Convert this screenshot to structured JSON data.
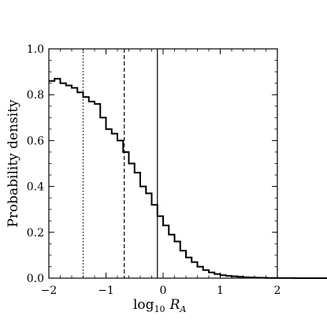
{
  "chart_data": {
    "type": "step",
    "xlabel": {
      "prefix": "log",
      "sub": "10",
      "var": "R",
      "var_sub": "A"
    },
    "ylabel": "Probability density",
    "xlim": [
      -2,
      2
    ],
    "ylim": [
      0,
      1.0
    ],
    "xticks": [
      -2,
      -1,
      0,
      1,
      2
    ],
    "xtick_labels": [
      "−2",
      "−1",
      "0",
      "1",
      "2"
    ],
    "yticks": [
      0.0,
      0.2,
      0.4,
      0.6,
      0.8,
      1.0
    ],
    "ytick_labels": [
      "0.0",
      "0.2",
      "0.4",
      "0.6",
      "0.8",
      "1.0"
    ],
    "bin_width": 0.1,
    "bin_start": -2.0,
    "values": [
      0.86,
      0.87,
      0.85,
      0.84,
      0.83,
      0.81,
      0.79,
      0.77,
      0.76,
      0.7,
      0.65,
      0.63,
      0.6,
      0.55,
      0.5,
      0.46,
      0.4,
      0.37,
      0.32,
      0.27,
      0.23,
      0.19,
      0.16,
      0.12,
      0.09,
      0.07,
      0.05,
      0.035,
      0.025,
      0.018,
      0.013,
      0.01,
      0.008,
      0.006,
      0.004,
      0.003,
      0.002,
      0.0015,
      0.001,
      0.0007,
      0.0005,
      0.0004,
      0.0003,
      0.0002,
      0.0001,
      0.0001,
      0.0,
      0.0,
      0.0,
      0.0
    ],
    "reference_lines": [
      {
        "x": -1.4,
        "style": "dotted"
      },
      {
        "x": -0.68,
        "style": "dashed"
      },
      {
        "x": -0.1,
        "style": "solid"
      }
    ],
    "line_color": "#000000"
  }
}
